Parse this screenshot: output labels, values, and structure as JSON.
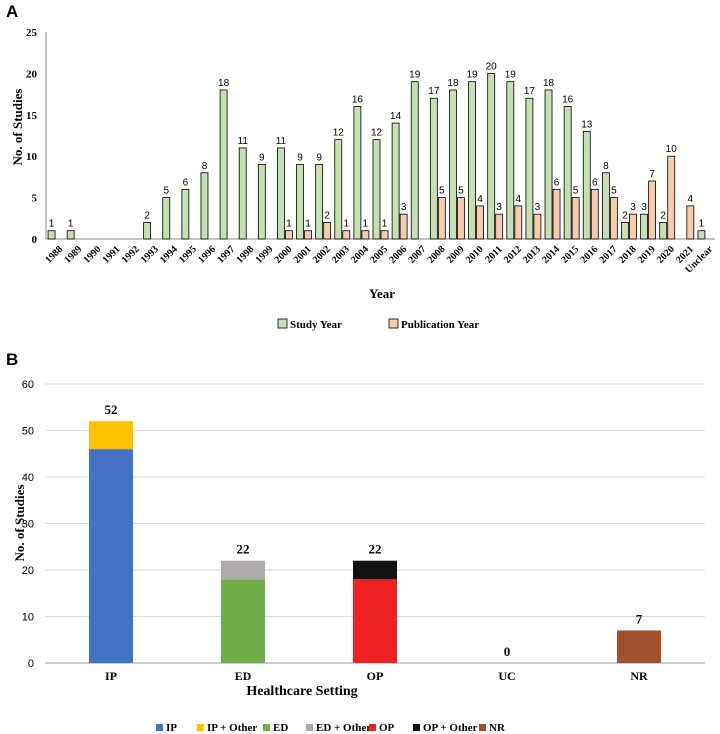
{
  "panels": {
    "a_label": "A",
    "b_label": "B"
  },
  "chart_data": [
    {
      "type": "bar",
      "panel": "A",
      "title": "",
      "xlabel": "Year",
      "ylabel": "No. of Studies",
      "ylim": [
        0,
        25
      ],
      "yticks": [
        0,
        5,
        10,
        15,
        20,
        25
      ],
      "grid": false,
      "legend_position": "bottom",
      "categories": [
        "1988",
        "1989",
        "1990",
        "1991",
        "1992",
        "1993",
        "1994",
        "1995",
        "1996",
        "1997",
        "1998",
        "1999",
        "2000",
        "2001",
        "2002",
        "2003",
        "2004",
        "2005",
        "2006",
        "2007",
        "2008",
        "2009",
        "2010",
        "2011",
        "2012",
        "2013",
        "2014",
        "2015",
        "2016",
        "2017",
        "2018",
        "2019",
        "2020",
        "2021",
        "Unclear"
      ],
      "series": [
        {
          "name": "Study Year",
          "color": "#c6e0b4",
          "values": [
            1,
            1,
            0,
            0,
            0,
            2,
            5,
            6,
            8,
            18,
            11,
            9,
            11,
            9,
            9,
            12,
            16,
            12,
            14,
            19,
            17,
            18,
            19,
            20,
            19,
            17,
            18,
            16,
            13,
            8,
            2,
            3,
            2,
            0,
            1
          ]
        },
        {
          "name": "Publication Year",
          "color": "#f8cbad",
          "values": [
            0,
            0,
            0,
            0,
            0,
            0,
            0,
            0,
            0,
            0,
            0,
            0,
            1,
            1,
            2,
            1,
            1,
            1,
            3,
            0,
            5,
            5,
            4,
            3,
            4,
            3,
            6,
            5,
            6,
            5,
            3,
            7,
            10,
            4,
            0
          ]
        }
      ]
    },
    {
      "type": "bar",
      "stacked": true,
      "panel": "B",
      "title": "",
      "xlabel": "Healthcare Setting",
      "ylabel": "No. of Studies",
      "ylim": [
        0,
        60
      ],
      "yticks": [
        0,
        10,
        20,
        30,
        40,
        50,
        60
      ],
      "grid": true,
      "legend_position": "bottom",
      "categories": [
        "IP",
        "ED",
        "OP",
        "UC",
        "NR"
      ],
      "totals": [
        "52",
        "22",
        "22",
        "0",
        "7"
      ],
      "series": [
        {
          "name": "IP",
          "color": "#4472c4",
          "values": [
            46,
            0,
            0,
            0,
            0
          ]
        },
        {
          "name": "IP + Other",
          "color": "#ffc000",
          "values": [
            6,
            0,
            0,
            0,
            0
          ]
        },
        {
          "name": "ED",
          "color": "#70ad47",
          "values": [
            0,
            18,
            0,
            0,
            0
          ]
        },
        {
          "name": "ED + Other",
          "color": "#afabab",
          "values": [
            0,
            4,
            0,
            0,
            0
          ]
        },
        {
          "name": "OP",
          "color": "#ee2222",
          "values": [
            0,
            0,
            18,
            0,
            0
          ]
        },
        {
          "name": "OP + Other",
          "color": "#111111",
          "values": [
            0,
            0,
            4,
            0,
            0
          ]
        },
        {
          "name": "NR",
          "color": "#a0522d",
          "values": [
            0,
            0,
            0,
            0,
            7
          ]
        }
      ]
    }
  ]
}
